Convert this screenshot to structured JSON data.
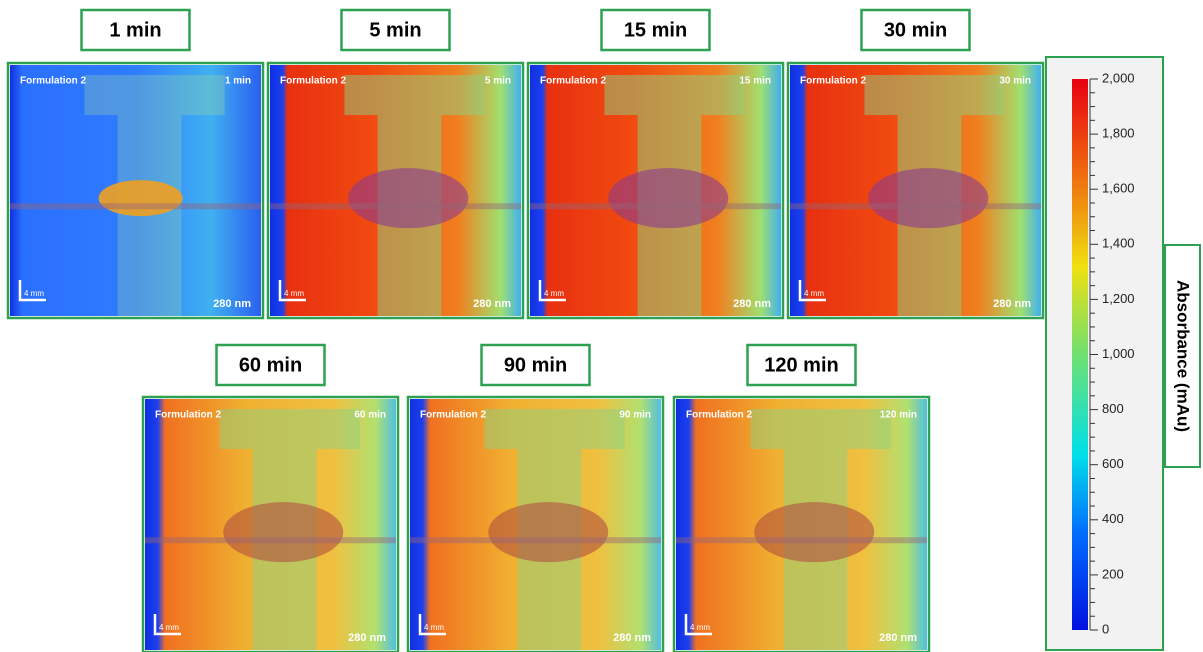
{
  "panels": [
    {
      "title": "1 min",
      "sample": "Formulation 2",
      "time": "1 min",
      "scale": "4 mm",
      "wavelength": "280 nm"
    },
    {
      "title": "5 min",
      "sample": "Formulation 2",
      "time": "5 min",
      "scale": "4 mm",
      "wavelength": "280 nm"
    },
    {
      "title": "15 min",
      "sample": "Formulation 2",
      "time": "15 min",
      "scale": "4 mm",
      "wavelength": "280 nm"
    },
    {
      "title": "30 min",
      "sample": "Formulation 2",
      "time": "30 min",
      "scale": "4 mm",
      "wavelength": "280 nm"
    },
    {
      "title": "60 min",
      "sample": "Formulation 2",
      "time": "60 min",
      "scale": "4 mm",
      "wavelength": "280 nm"
    },
    {
      "title": "90 min",
      "sample": "Formulation 2",
      "time": "90 min",
      "scale": "4 mm",
      "wavelength": "280 nm"
    },
    {
      "title": "120 min",
      "sample": "Formulation 2",
      "time": "120 min",
      "scale": "4 mm",
      "wavelength": "280 nm"
    }
  ],
  "colorbar": {
    "title": "Absorbance (mAu)",
    "ticks": [
      0,
      200,
      400,
      600,
      800,
      {
        "value": 1000,
        "label": "1,000"
      },
      {
        "value": 1200,
        "label": "1,200"
      },
      {
        "value": 1400,
        "label": "1,400"
      },
      {
        "value": 1600,
        "label": "1,600"
      },
      {
        "value": 1800,
        "label": "1,800"
      },
      {
        "value": 2000,
        "label": "2,000"
      }
    ]
  }
}
